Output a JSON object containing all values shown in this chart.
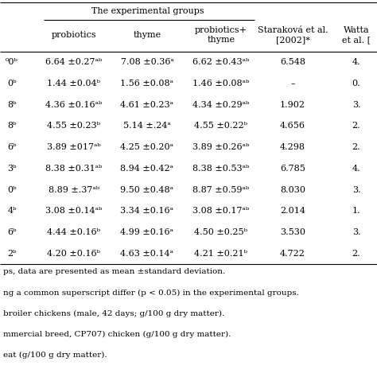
{
  "title": "The experimental groups",
  "col_headers": [
    "",
    "probiotics",
    "thyme",
    "probiotics+\nthyme",
    "Staraková et al.\n[2002]*",
    "Watta\net al. ["
  ],
  "rows": [
    [
      "⁰0ᵇ",
      "6.64 ±0.27ᵃᵇ",
      "7.08 ±0.36ᵃ",
      "6.62 ±0.43ᵃᵇ",
      "6.548",
      "4."
    ],
    [
      "0ᵇ",
      "1.44 ±0.04ᵇ",
      "1.56 ±0.08ᵃ",
      "1.46 ±0.08ᵃᵇ",
      "–",
      "0."
    ],
    [
      "8ᵇ",
      "4.36 ±0.16ᵃᵇ",
      "4.61 ±0.23ᵃ",
      "4.34 ±0.29ᵃᵇ",
      "1.902",
      "3."
    ],
    [
      "8ᵇ",
      "4.55 ±0.23ᵇ",
      "5.14 ±.24ᵃ",
      "4.55 ±0.22ᵇ",
      "4.656",
      "2."
    ],
    [
      "6ᵇ",
      "3.89 ±017ᵃᵇ",
      "4.25 ±0.20ᵃ",
      "3.89 ±0.26ᵃᵇ",
      "4.298",
      "2."
    ],
    [
      "3ᵇ",
      "8.38 ±0.31ᵃᵇ",
      "8.94 ±0.42ᵃ",
      "8.38 ±0.53ᵃᵇ",
      "6.785",
      "4."
    ],
    [
      "0ᵇ",
      "8.89 ±.37ᵃᵇ",
      "9.50 ±0.48ᵃ",
      "8.87 ±0.59ᵃᵇ",
      "8.030",
      "3."
    ],
    [
      "4ᵇ",
      "3.08 ±0.14ᵃᵇ",
      "3.34 ±0.16ᵃ",
      "3.08 ±0.17ᵃᵇ",
      "2.014",
      "1."
    ],
    [
      "6ᵇ",
      "4.44 ±0.16ᵇ",
      "4.99 ±0.16ᵃ",
      "4.50 ±0.25ᵇ",
      "3.530",
      "3."
    ],
    [
      "2ᵇ",
      "4.20 ±0.16ᵇ",
      "4.63 ±0.14ᵃ",
      "4.21 ±0.21ᵇ",
      "4.722",
      "2."
    ]
  ],
  "footnotes": [
    "ps, data are presented as mean ±standard deviation.",
    "ng a common superscript differ (p < 0.05) in the experimental groups.",
    "broiler chickens (male, 42 days; g/100 g dry matter).",
    "mmercial breed, CP707) chicken (g/100 g dry matter).",
    "eat (g/100 g dry matter)."
  ],
  "background_color": "#ffffff",
  "text_color": "#000000",
  "line_color": "#000000",
  "font_size": 8.0,
  "footnote_font_size": 7.5
}
